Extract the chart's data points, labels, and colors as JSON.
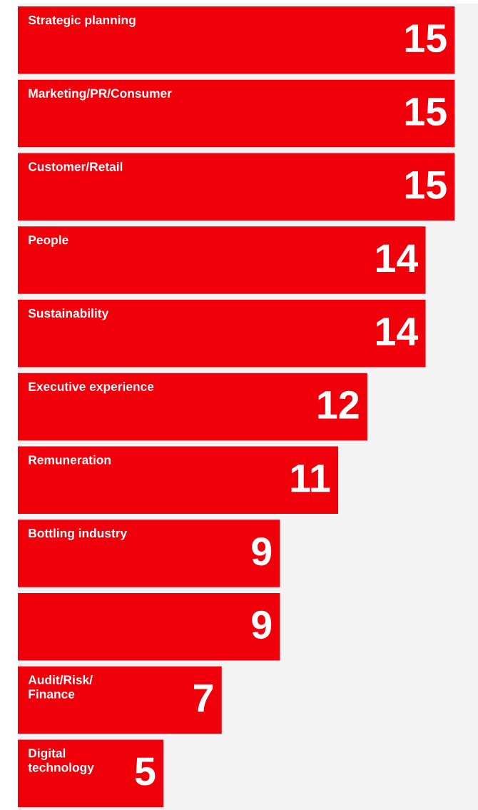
{
  "chart_data": {
    "type": "bar",
    "orientation": "horizontal",
    "categories": [
      "Strategic planning",
      "Marketing/PR/Consumer",
      "Customer/Retail",
      "People",
      "Sustainability",
      "Executive experience",
      "Remuneration",
      "Bottling industry",
      null,
      "Audit/Risk/\nFinance",
      "Digital\ntechnology"
    ],
    "values": [
      15,
      15,
      15,
      14,
      14,
      12,
      11,
      9,
      9,
      7,
      5
    ],
    "color": "#f0000a",
    "xlim": [
      0,
      15.8
    ],
    "data_labels": true
  }
}
